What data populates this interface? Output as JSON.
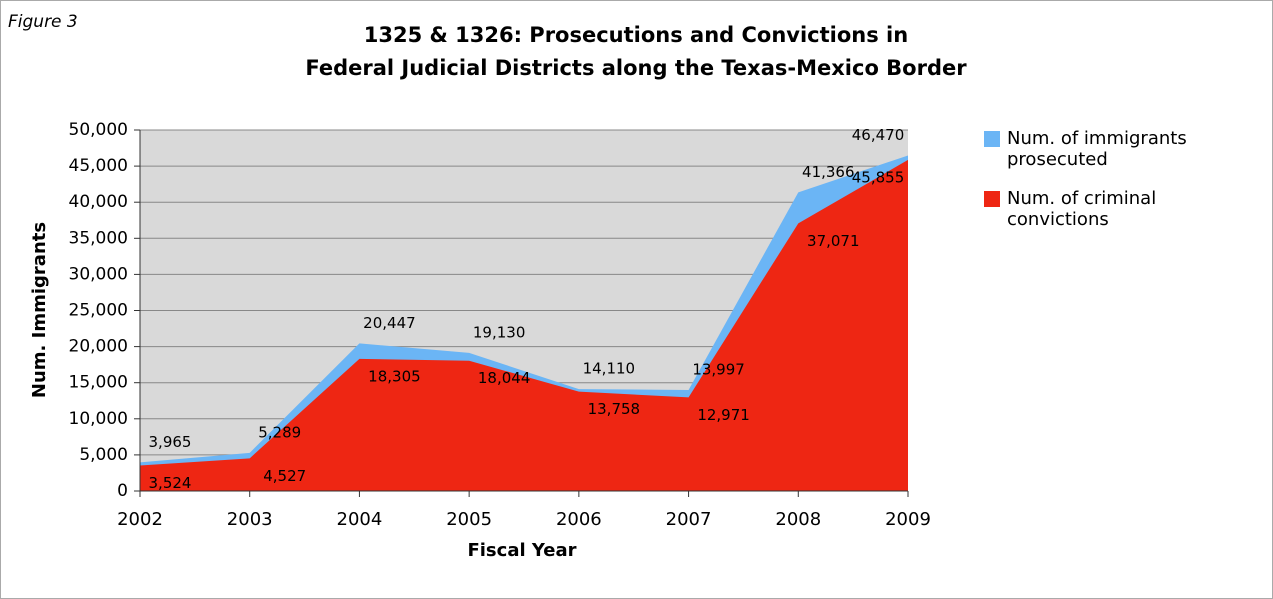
{
  "chart_data": {
    "type": "area",
    "figure_label": "Figure 3",
    "title": [
      "1325 & 1326: Prosecutions and Convictions in",
      "Federal Judicial Districts along the Texas-Mexico Border"
    ],
    "xlabel": "Fiscal Year",
    "ylabel": "Num. Immigrants",
    "categories": [
      "2002",
      "2003",
      "2004",
      "2005",
      "2006",
      "2007",
      "2008",
      "2009"
    ],
    "series": [
      {
        "name": "Num. of immigrants prosecuted",
        "color": "#6bb5f5",
        "values": [
          3965,
          5289,
          20447,
          19130,
          14110,
          13997,
          41366,
          46470
        ],
        "value_labels": [
          "3,965",
          "5,289",
          "20,447",
          "19,130",
          "14,110",
          "13,997",
          "41,366",
          "46,470"
        ]
      },
      {
        "name": "Num. of criminal convictions",
        "color": "#ee2613",
        "values": [
          3524,
          4527,
          18305,
          18044,
          13758,
          12971,
          37071,
          45855
        ],
        "value_labels": [
          "3,524",
          "4,527",
          "18,305",
          "18,044",
          "13,758",
          "12,971",
          "37,071",
          "45,855"
        ]
      }
    ],
    "ylim": [
      0,
      50000
    ],
    "yticks": [
      0,
      {
        "value": 5000,
        "label": "5,000"
      },
      {
        "value": 10000,
        "label": "10,000"
      },
      {
        "value": 15000,
        "label": "15,000"
      },
      {
        "value": 20000,
        "label": "20,000"
      },
      {
        "value": 25000,
        "label": "25,000"
      },
      {
        "value": 30000,
        "label": "30,000"
      },
      {
        "value": 35000,
        "label": "35,000"
      },
      {
        "value": 40000,
        "label": "40,000"
      },
      {
        "value": 45000,
        "label": "45,000"
      },
      {
        "value": 50000,
        "label": "50,000"
      }
    ],
    "grid": true,
    "legend": "right"
  }
}
